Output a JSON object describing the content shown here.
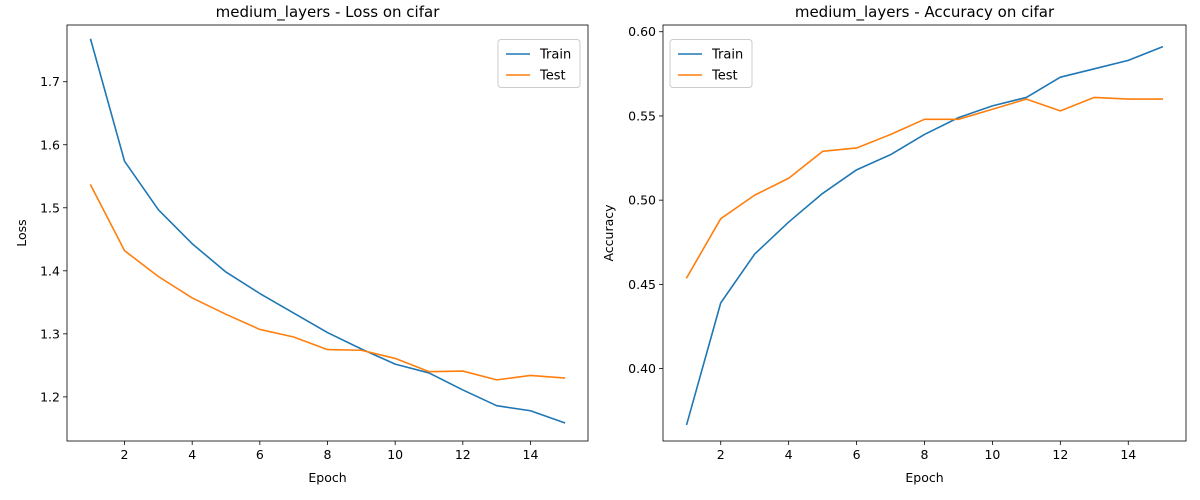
{
  "chart_data": [
    {
      "type": "line",
      "title": "medium_layers - Loss on cifar",
      "xlabel": "Epoch",
      "ylabel": "Loss",
      "xlim": [
        0.3,
        15.7
      ],
      "ylim": [
        1.13,
        1.79
      ],
      "xticks": [
        2,
        4,
        6,
        8,
        10,
        12,
        14
      ],
      "yticks": [
        1.2,
        1.3,
        1.4,
        1.5,
        1.6,
        1.7
      ],
      "ytick_decimals": 1,
      "legend_position": "top-right",
      "grid": false,
      "x": [
        1,
        2,
        3,
        4,
        5,
        6,
        7,
        8,
        9,
        10,
        11,
        12,
        13,
        14,
        15
      ],
      "series": [
        {
          "name": "Train",
          "color": "#1f77b4",
          "values": [
            1.767,
            1.574,
            1.497,
            1.443,
            1.398,
            1.364,
            1.333,
            1.302,
            1.276,
            1.252,
            1.238,
            1.211,
            1.186,
            1.178,
            1.159
          ]
        },
        {
          "name": "Test",
          "color": "#ff7f0e",
          "values": [
            1.536,
            1.432,
            1.391,
            1.357,
            1.331,
            1.307,
            1.295,
            1.275,
            1.274,
            1.261,
            1.24,
            1.241,
            1.227,
            1.234,
            1.23
          ]
        }
      ]
    },
    {
      "type": "line",
      "title": "medium_layers - Accuracy on cifar",
      "xlabel": "Epoch",
      "ylabel": "Accuracy",
      "xlim": [
        0.3,
        15.7
      ],
      "ylim": [
        0.357,
        0.604
      ],
      "xticks": [
        2,
        4,
        6,
        8,
        10,
        12,
        14
      ],
      "yticks": [
        0.4,
        0.45,
        0.5,
        0.55,
        0.6
      ],
      "ytick_decimals": 2,
      "legend_position": "top-left",
      "grid": false,
      "x": [
        1,
        2,
        3,
        4,
        5,
        6,
        7,
        8,
        9,
        10,
        11,
        12,
        13,
        14,
        15
      ],
      "series": [
        {
          "name": "Train",
          "color": "#1f77b4",
          "values": [
            0.367,
            0.439,
            0.468,
            0.487,
            0.504,
            0.518,
            0.527,
            0.539,
            0.549,
            0.556,
            0.561,
            0.573,
            0.578,
            0.583,
            0.591
          ]
        },
        {
          "name": "Test",
          "color": "#ff7f0e",
          "values": [
            0.454,
            0.489,
            0.503,
            0.513,
            0.529,
            0.531,
            0.539,
            0.548,
            0.548,
            0.554,
            0.56,
            0.553,
            0.561,
            0.56,
            0.56
          ]
        }
      ]
    }
  ]
}
